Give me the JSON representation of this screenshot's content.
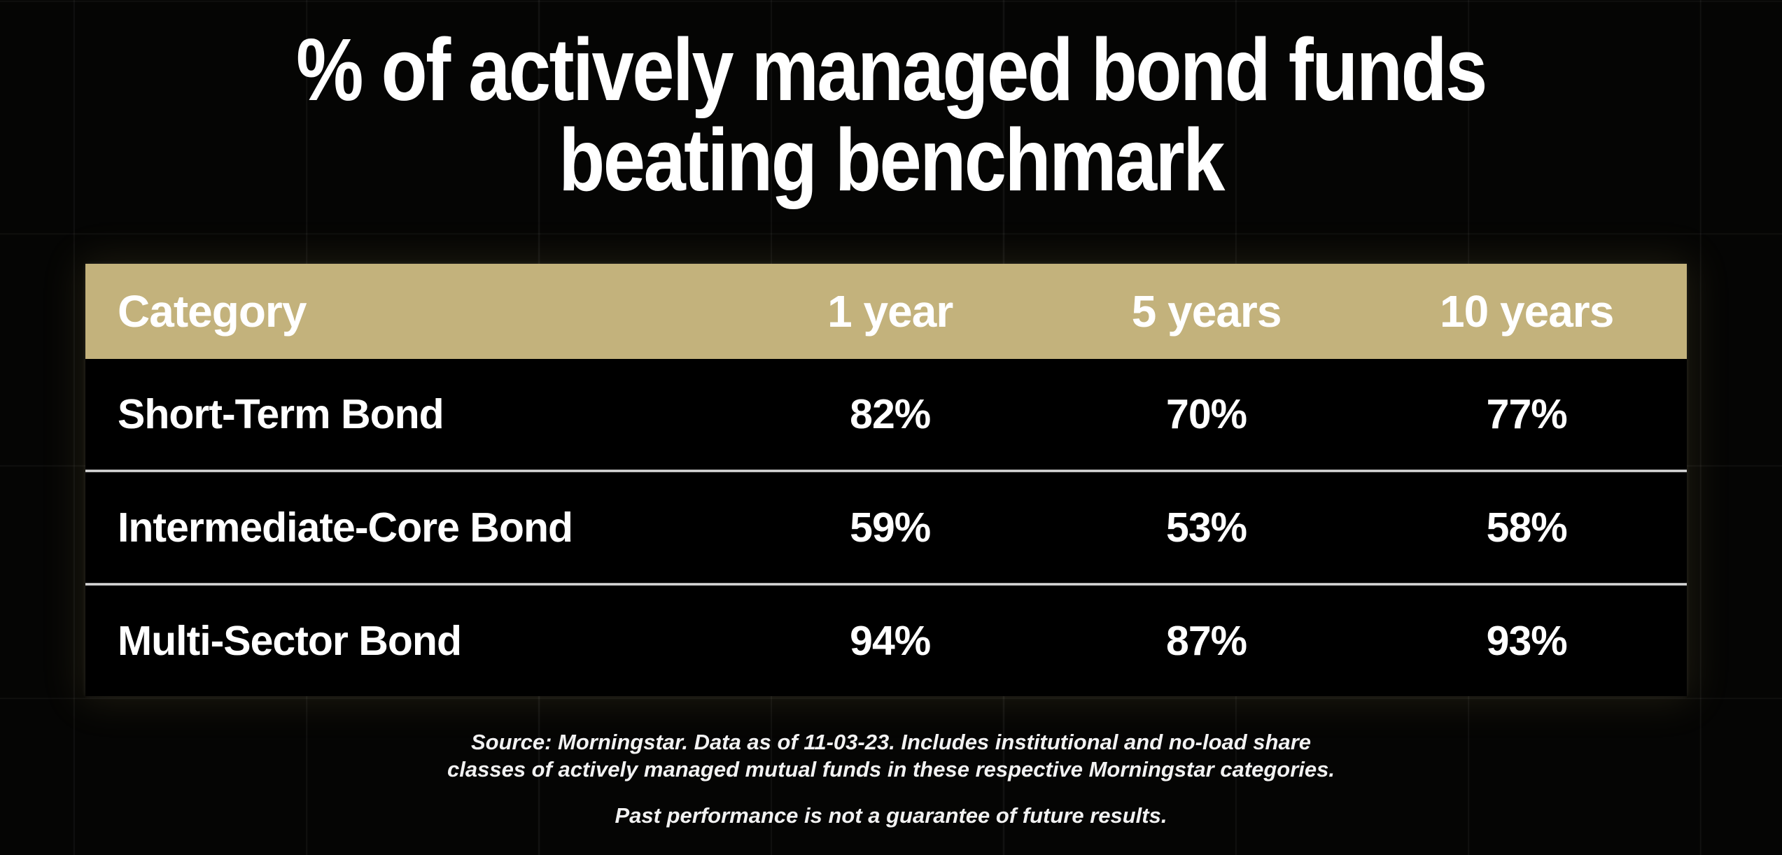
{
  "title": {
    "line1": "% of actively managed bond funds",
    "line2": "beating benchmark"
  },
  "chart_data": {
    "type": "table",
    "title": "% of actively managed bond funds beating benchmark",
    "columns": [
      "Category",
      "1 year",
      "5 years",
      "10 years"
    ],
    "rows": [
      {
        "category": "Short-Term Bond",
        "values": [
          "82%",
          "70%",
          "77%"
        ]
      },
      {
        "category": "Intermediate-Core Bond",
        "values": [
          "59%",
          "53%",
          "58%"
        ]
      },
      {
        "category": "Multi-Sector Bond",
        "values": [
          "94%",
          "87%",
          "93%"
        ]
      }
    ],
    "layout": {
      "header_style": "gold band, white bold text",
      "row_style": "black rows separated by thin silver divider lines",
      "background": "near-black with faint square grid"
    }
  },
  "footnotes": {
    "source_line1": "Source: Morningstar. Data as of 11-03-23. Includes institutional and no-load share",
    "source_line2": "classes of actively managed mutual funds in these respective Morningstar categories.",
    "disclaimer": "Past performance is not a guarantee of future results."
  },
  "colors": {
    "page_bg": "#050504",
    "grid_line": "#161614",
    "header_bg": "#c3b27c",
    "row_bg": "#000000",
    "divider": "#d9d9d9",
    "text": "#ffffff"
  }
}
